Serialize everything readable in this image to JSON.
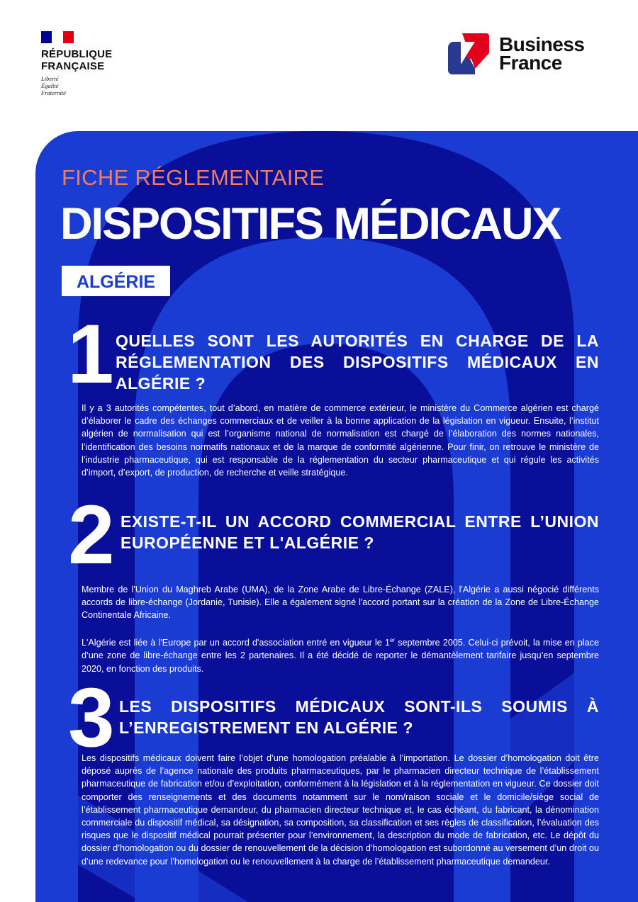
{
  "header": {
    "republique": {
      "line1": "RÉPUBLIQUE",
      "line2": "FRANÇAISE",
      "motto": [
        "Liberté",
        "Égalité",
        "Fraternité"
      ]
    },
    "business_france": {
      "line1": "Business",
      "line2": "France"
    }
  },
  "colors": {
    "panel_blue": "#1a3cd2",
    "navy": "#0a0f9a",
    "accent_orange": "#f27d5b",
    "brand_red": "#e2001a"
  },
  "kicker": "FICHE RÉGLEMENTAIRE",
  "title": "DISPOSITIFS MÉDICAUX",
  "country": "ALGÉRIE",
  "sections": [
    {
      "number": "1",
      "question": "Quelles sont les autorités en charge de la réglementation des dispositifs médicaux en Algérie ?",
      "paragraphs": [
        "Il y a 3 autorités compétentes, tout d’abord, en matière de commerce extérieur, le ministère du Commerce algérien est chargé d’élaborer le cadre des échanges commerciaux et de veiller à la bonne application de la législation en vigueur. Ensuite, l’institut algérien de normalisation qui est l’organisme national de normalisation est chargé de l’élaboration des normes nationales, l’identification des besoins normatifs nationaux et de la marque de conformité algérienne. Pour finir, on retrouve le ministère de l’industrie pharmaceutique, qui est responsable de la réglementation du secteur pharmaceutique et qui régule les activités d’import, d’export, de production, de recherche et veille stratégique."
      ]
    },
    {
      "number": "2",
      "question": "Existe-t-il un accord commercial entre l’Union européenne et l'Algérie ?",
      "paragraphs": [
        "Membre de l'Union du Maghreb Arabe (UMA), de la Zone Arabe de Libre-Échange (ZALE), l'Algérie a aussi négocié différents accords de libre-échange (Jordanie, Tunisie). Elle a également signé l'accord portant sur la création de la Zone de Libre-Échange Continentale Africaine."
      ],
      "para2_before": "L'Algérie est liée à l'Europe par un accord d'association entré en vigueur le 1",
      "para2_sup": "er",
      "para2_after": " septembre 2005. Celui-ci prévoit, la mise en place d’une zone de libre-échange entre les 2 partenaires. Il a été décidé de reporter le démantèlement tarifaire jusqu’en septembre 2020, en fonction des produits."
    },
    {
      "number": "3",
      "question": "Les dispositifs médicaux sont-ils soumis à l’enregistrement en Algérie ?",
      "paragraphs": [
        "Les dispositifs médicaux doivent faire l’objet d’une homologation préalable à l’importation. Le dossier d’homologation doit être déposé auprès de l’agence nationale des produits pharmaceutiques, par le pharmacien directeur technique de l’établissement pharmaceutique de fabrication et/ou d’exploitation, conformément à la législation et à la réglementation en vigueur. Ce dossier doit comporter des renseignements et des documents notamment sur le nom/raison sociale et le domicile/siège social de l’établissement pharmaceutique demandeur, du pharmacien directeur technique et, le cas échéant, du fabricant, la dénomination commerciale du dispositif médical, sa désignation, sa composition, sa classification et ses règles de classification, l’évaluation des risques que le dispositif médical pourrait présenter pour l’environnement, la description du mode de fabrication, etc. Le dépôt du dossier d’homologation ou du dossier de renouvellement de la décision d’homologation est subordonné au versement d’un droit ou d’une redevance pour l’homologation ou le renouvellement à la charge de l’établissement pharmaceutique demandeur."
      ]
    }
  ]
}
